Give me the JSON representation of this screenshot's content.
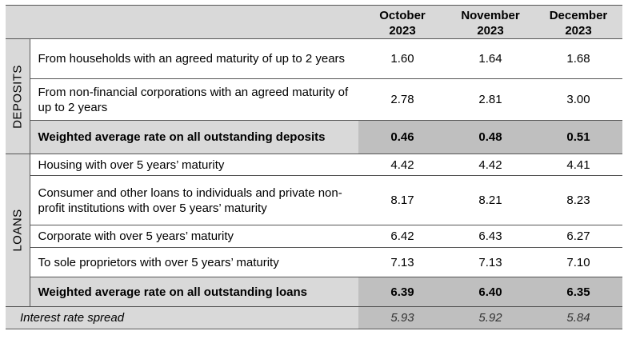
{
  "header": {
    "cols": [
      {
        "line1": "October",
        "line2": "2023"
      },
      {
        "line1": "November",
        "line2": "2023"
      },
      {
        "line1": "December",
        "line2": "2023"
      }
    ]
  },
  "deposits": {
    "label": "DEPOSITS",
    "rows": [
      {
        "desc": "From households with an agreed maturity of up to 2 years",
        "values": [
          "1.60",
          "1.64",
          "1.68"
        ]
      },
      {
        "desc": "From non-financial corporations with an agreed maturity of up to 2 years",
        "values": [
          "2.78",
          "2.81",
          "3.00"
        ]
      }
    ],
    "total": {
      "desc": "Weighted average rate on all outstanding deposits",
      "values": [
        "0.46",
        "0.48",
        "0.51"
      ]
    }
  },
  "loans": {
    "label": "LOANS",
    "rows": [
      {
        "desc": "Housing with over 5 years’ maturity",
        "values": [
          "4.42",
          "4.42",
          "4.41"
        ]
      },
      {
        "desc": "Consumer and other loans to individuals and private non-profit institutions with over 5 years’ maturity",
        "values": [
          "8.17",
          "8.21",
          "8.23"
        ]
      },
      {
        "desc": "Corporate with over 5 years’ maturity",
        "values": [
          "6.42",
          "6.43",
          "6.27"
        ]
      },
      {
        "desc": "To sole proprietors with over 5 years’ maturity",
        "values": [
          "7.13",
          "7.13",
          "7.10"
        ]
      }
    ],
    "total": {
      "desc": "Weighted average rate on all outstanding loans",
      "values": [
        "6.39",
        "6.40",
        "6.35"
      ]
    }
  },
  "spread": {
    "desc": "Interest rate spread",
    "values": [
      "5.93",
      "5.92",
      "5.84"
    ]
  }
}
